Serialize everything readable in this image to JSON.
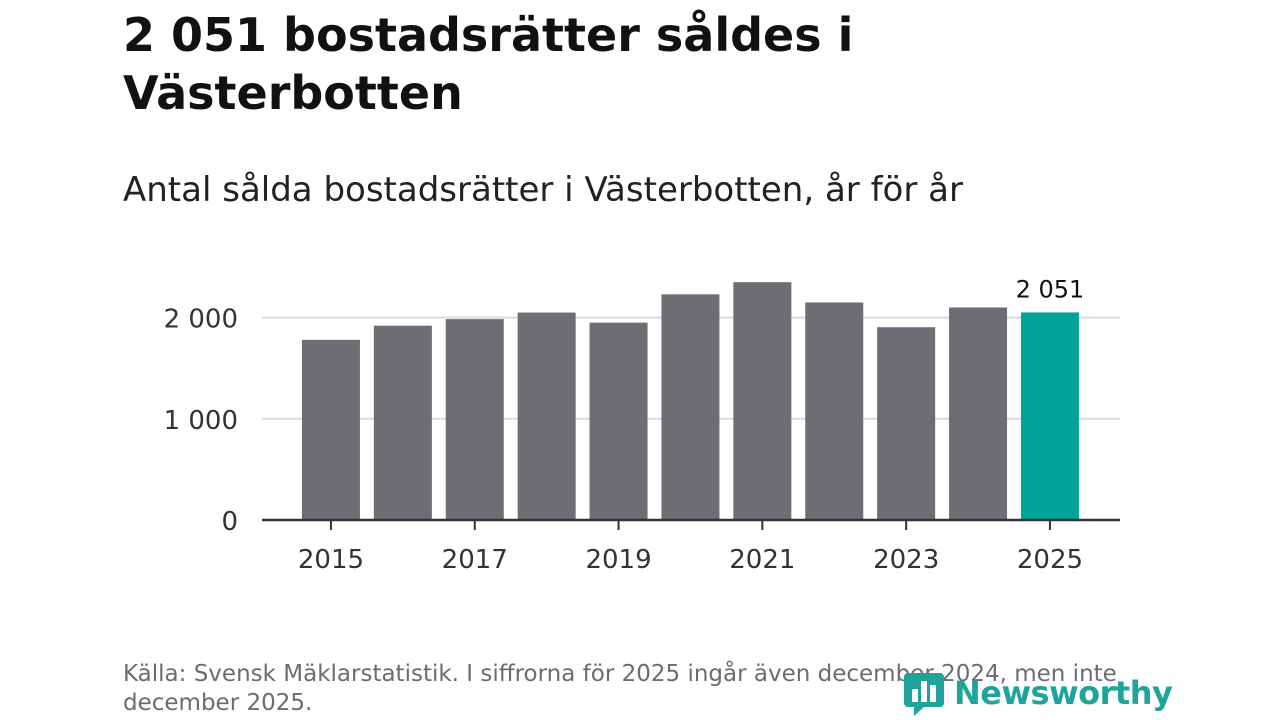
{
  "title": "2 051 bostadsrätter såldes i Västerbotten",
  "subtitle": "Antal sålda bostadsrätter i Västerbotten, år för år",
  "source": "Källa: Svensk Mäklarstatistik. I siffrorna för 2025 ingår även december 2024, men inte december 2025.",
  "logo": {
    "text": "Newsworthy",
    "icon": "bar-chart-icon"
  },
  "colors": {
    "bar": "#6e6d74",
    "highlight": "#00a398",
    "grid": "#d9d9d9",
    "axis": "#333333",
    "logo": "#1fa39a"
  },
  "chart_data": {
    "type": "bar",
    "categories": [
      "2015",
      "2016",
      "2017",
      "2018",
      "2019",
      "2020",
      "2021",
      "2022",
      "2023",
      "2024",
      "2025"
    ],
    "values": [
      1780,
      1920,
      1985,
      2050,
      1950,
      2230,
      2350,
      2150,
      1905,
      2100,
      2051
    ],
    "highlight_index": 10,
    "highlight_label": "2 051",
    "x_tick_labels": [
      "2015",
      "2017",
      "2019",
      "2021",
      "2023",
      "2025"
    ],
    "y_ticks": [
      {
        "value": 0,
        "label": "0"
      },
      {
        "value": 1000,
        "label": "1 000"
      },
      {
        "value": 2000,
        "label": "2 000"
      }
    ],
    "ylim": [
      0,
      2500
    ],
    "grid": true,
    "xlabel": "",
    "ylabel": ""
  }
}
